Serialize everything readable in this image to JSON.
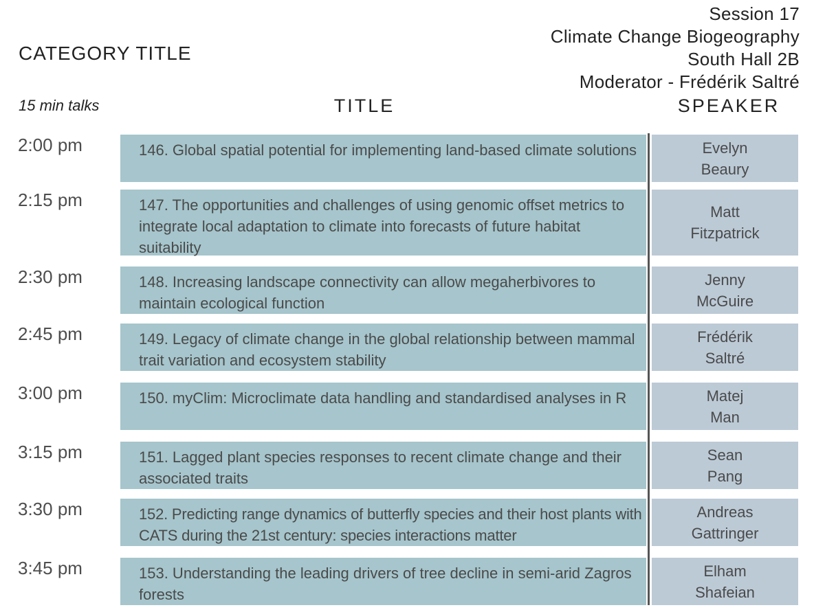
{
  "session": {
    "number": "Session 17",
    "name": "Climate Change Biogeography",
    "room": "South Hall 2B",
    "moderator": "Moderator - Frédérik Saltré"
  },
  "category_title": "CATEGORY TITLE",
  "talk_length": "15 min talks",
  "headers": {
    "title": "TITLE",
    "speaker": "SPEAKER"
  },
  "talks": [
    {
      "time": "2:00 pm",
      "title": "146. Global spatial potential for implementing land-based climate solutions",
      "speaker_first": "Evelyn",
      "speaker_last": "Beaury"
    },
    {
      "time": "2:15 pm",
      "title": "147. The opportunities and challenges of using genomic offset metrics to integrate local adaptation to climate into forecasts of future habitat suitability",
      "speaker_first": "Matt",
      "speaker_last": "Fitzpatrick"
    },
    {
      "time": "2:30 pm",
      "title": "148. Increasing landscape connectivity can allow megaherbivores to maintain ecological function",
      "speaker_first": "Jenny",
      "speaker_last": "McGuire"
    },
    {
      "time": "2:45 pm",
      "title": "149. Legacy of climate change in the global relationship between mammal trait variation and ecosystem stability",
      "speaker_first": "Frédérik",
      "speaker_last": "Saltré"
    },
    {
      "time": "3:00 pm",
      "title": "150. myClim: Microclimate data handling and standardised analyses in R",
      "speaker_first": "Matej",
      "speaker_last": "Man"
    },
    {
      "time": "3:15 pm",
      "title": "151. Lagged plant species responses to recent climate change and their associated traits",
      "speaker_first": "Sean",
      "speaker_last": "Pang"
    },
    {
      "time": "3:30 pm",
      "title": "152. Predicting range dynamics of butterfly species and their host plants with CATS during the 21st century: species interactions matter",
      "speaker_first": "Andreas",
      "speaker_last": "Gattringer"
    },
    {
      "time": "3:45 pm",
      "title": "153. Understanding the leading drivers of tree decline in semi-arid Zagros forests",
      "speaker_first": "Elham",
      "speaker_last": "Shafeian"
    }
  ]
}
